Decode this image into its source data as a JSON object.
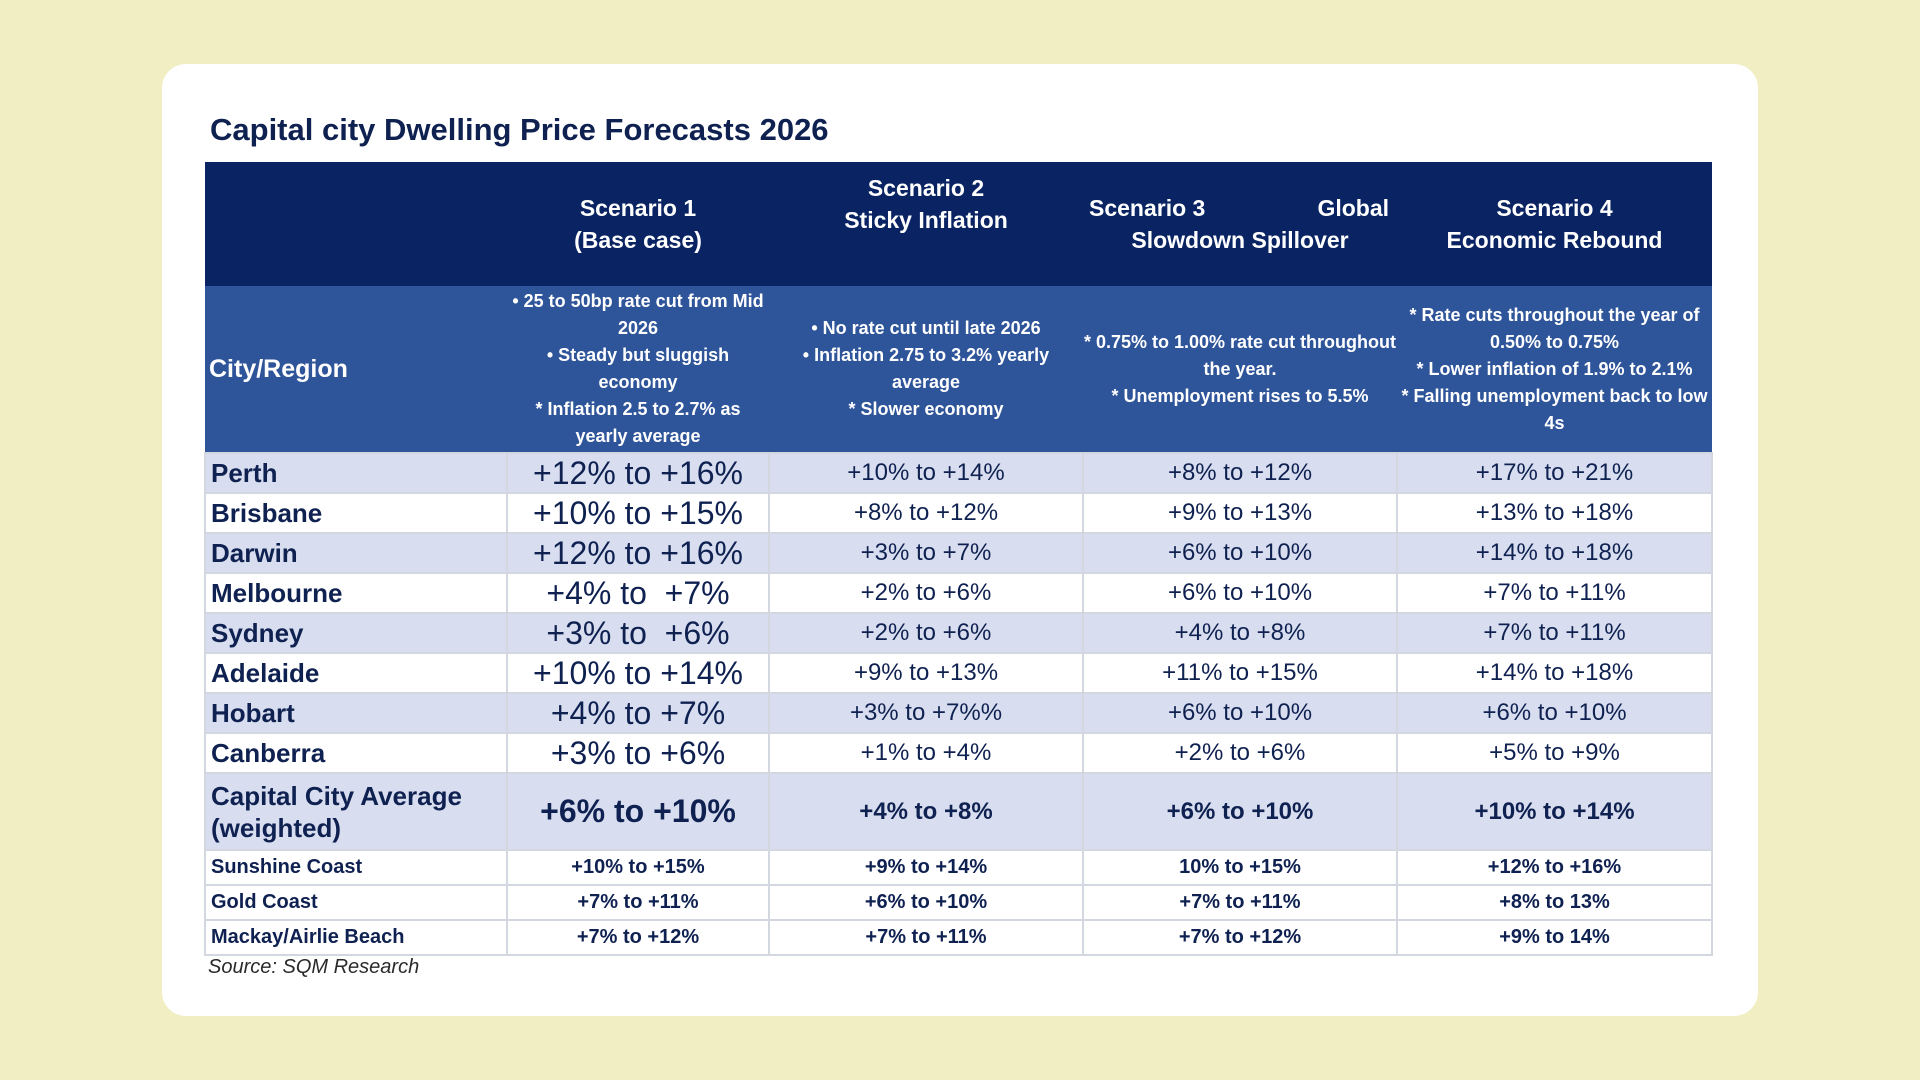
{
  "title": "Capital city Dwelling Price Forecasts 2026",
  "scenarios": [
    {
      "line1": "Scenario 1",
      "line2": "(Base case)"
    },
    {
      "line1": "Scenario 2",
      "line2": "Sticky Inflation"
    },
    {
      "line1a": "Scenario 3",
      "line1b": "Global",
      "line2": "Slowdown Spillover"
    },
    {
      "line1": "Scenario 4",
      "line2": "Economic Rebound"
    }
  ],
  "city_header": "City/Region",
  "assumptions": [
    [
      "• 25 to 50bp rate cut from Mid 2026",
      "• Steady but sluggish economy",
      "* Inflation 2.5 to 2.7% as yearly average"
    ],
    [
      "• No rate cut until late 2026",
      "• Inflation 2.75 to 3.2% yearly average",
      "* Slower economy"
    ],
    [
      "* 0.75% to 1.00% rate cut throughout the year.",
      "* Unemployment rises to 5.5%"
    ],
    [
      "* Rate cuts throughout the year of 0.50% to 0.75%",
      "* Lower inflation of 1.9% to 2.1%",
      "* Falling unemployment back to low 4s"
    ]
  ],
  "rows": [
    {
      "city": "Perth",
      "values": [
        "+12% to +16%",
        "+10% to +14%",
        "+8% to +12%",
        "+17% to +21%"
      ]
    },
    {
      "city": "Brisbane",
      "values": [
        "+10% to +15%",
        "+8% to +12%",
        "+9% to +13%",
        "+13% to +18%"
      ]
    },
    {
      "city": "Darwin",
      "values": [
        "+12% to +16%",
        "+3% to +7%",
        "+6% to +10%",
        "+14% to +18%"
      ]
    },
    {
      "city": "Melbourne",
      "values": [
        "+4% to  +7%",
        "+2% to +6%",
        "+6% to +10%",
        "+7% to +11%"
      ]
    },
    {
      "city": "Sydney",
      "values": [
        "+3% to  +6%",
        "+2% to +6%",
        "+4% to +8%",
        "+7% to +11%"
      ]
    },
    {
      "city": "Adelaide",
      "values": [
        "+10% to +14%",
        "+9% to +13%",
        "+11% to +15%",
        "+14% to +18%"
      ]
    },
    {
      "city": "Hobart",
      "values": [
        "+4% to +7%",
        "+3% to +7%%",
        "+6% to +10%",
        "+6% to +10%"
      ]
    },
    {
      "city": "Canberra",
      "values": [
        "+3% to +6%",
        "+1% to +4%",
        "+2% to +6%",
        "+5% to +9%"
      ]
    }
  ],
  "average": {
    "city_line1": "Capital City Average",
    "city_line2": "(weighted)",
    "values": [
      "+6% to +10%",
      "+4% to +8%",
      "+6% to +10%",
      "+10% to +14%"
    ]
  },
  "regional": [
    {
      "city": "Sunshine Coast",
      "values": [
        "+10% to +15%",
        "+9% to +14%",
        "10% to +15%",
        "+12% to +16%"
      ]
    },
    {
      "city": "Gold Coast",
      "values": [
        "+7% to +11%",
        "+6% to +10%",
        "+7% to +11%",
        "+8% to 13%"
      ]
    },
    {
      "city": "Mackay/Airlie Beach",
      "values": [
        "+7% to +12%",
        "+7% to +11%",
        "+7% to +12%",
        "+9% to 14%"
      ]
    }
  ],
  "source": "Source: SQM Research"
}
